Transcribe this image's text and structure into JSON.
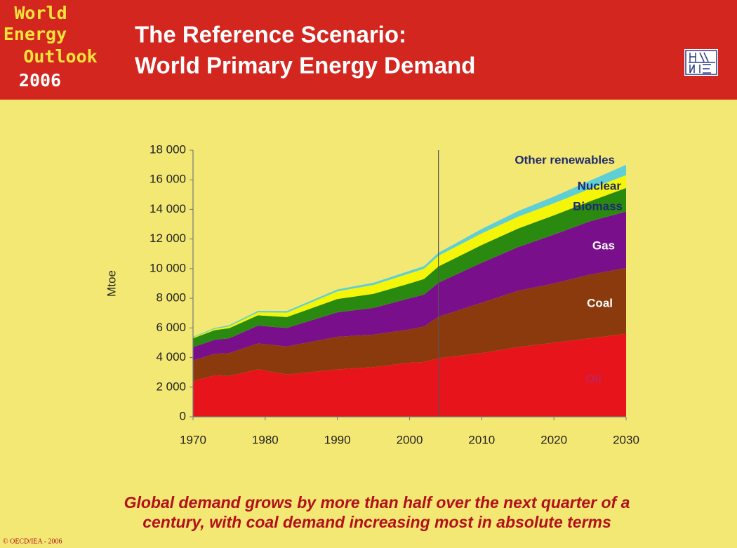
{
  "header": {
    "logo": [
      "World",
      "Energy",
      "Outlook",
      "2006"
    ],
    "title": [
      "The Reference Scenario:",
      "World Primary Energy Demand"
    ]
  },
  "chart_data": {
    "type": "stacked_area",
    "ylabel": "Mtoe",
    "x": [
      1970,
      1973,
      1975,
      1979,
      1983,
      1990,
      1995,
      2000,
      2002,
      2004,
      2010,
      2015,
      2020,
      2025,
      2030
    ],
    "series": [
      {
        "name": "Oil",
        "color": "#e8141c",
        "values": [
          2400,
          2800,
          2750,
          3200,
          2850,
          3200,
          3350,
          3650,
          3700,
          3950,
          4300,
          4700,
          5000,
          5300,
          5600
        ]
      },
      {
        "name": "Coal",
        "color": "#8b3a0e",
        "values": [
          1400,
          1450,
          1550,
          1750,
          1900,
          2200,
          2200,
          2250,
          2400,
          2800,
          3400,
          3800,
          4000,
          4300,
          4450
        ]
      },
      {
        "name": "Gas",
        "color": "#7a0f8c",
        "values": [
          900,
          950,
          1000,
          1200,
          1250,
          1650,
          1800,
          2100,
          2150,
          2300,
          2700,
          2950,
          3300,
          3600,
          3800
        ]
      },
      {
        "name": "Biomass",
        "color": "#2a8a10",
        "values": [
          600,
          650,
          680,
          700,
          730,
          900,
          950,
          1000,
          1050,
          1100,
          1200,
          1250,
          1300,
          1350,
          1600
        ]
      },
      {
        "name": "Nuclear",
        "color": "#f5f50a",
        "values": [
          50,
          80,
          120,
          200,
          300,
          520,
          600,
          680,
          690,
          720,
          780,
          800,
          820,
          840,
          860
        ]
      },
      {
        "name": "Other renewables",
        "color": "#5fcfd6",
        "values": [
          50,
          70,
          80,
          100,
          110,
          130,
          150,
          170,
          180,
          200,
          300,
          380,
          450,
          550,
          700
        ]
      }
    ],
    "divider": 2004,
    "xlim": [
      1970,
      2030
    ],
    "xticks": [
      1970,
      1980,
      1990,
      2000,
      2010,
      2020,
      2030
    ],
    "ylim": [
      0,
      18000
    ],
    "yticks": [
      0,
      {
        "value": 2000,
        "label": "2 000"
      },
      {
        "value": 4000,
        "label": "4 000"
      },
      {
        "value": 6000,
        "label": "6 000"
      },
      {
        "value": 8000,
        "label": "8 000"
      },
      {
        "value": 10000,
        "label": "10 000"
      },
      {
        "value": 12000,
        "label": "12 000"
      },
      {
        "value": 14000,
        "label": "14 000"
      },
      {
        "value": 16000,
        "label": "16 000"
      },
      {
        "value": 18000,
        "label": "18 000"
      }
    ]
  },
  "caption": [
    "Global demand grows by more than half over the next quarter of a",
    "century, with coal demand increasing most in absolute terms"
  ],
  "copyright": "© OECD/IEA - 2006"
}
